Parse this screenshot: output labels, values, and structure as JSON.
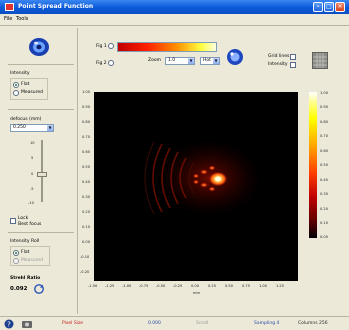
{
  "window": {
    "title": "Point Spread Function",
    "minimize": "–",
    "maximize": "□",
    "close": "✕"
  },
  "menu": {
    "file": "File",
    "tools": "Tools"
  },
  "left": {
    "intensity_label": "Intensity",
    "intensity_options": [
      "Flat",
      "Measured"
    ],
    "defocus_label": "defocus (mm)",
    "defocus_value": "0.250",
    "slider_ticks": [
      "10",
      "5",
      "0",
      "-5",
      "-10"
    ],
    "lock_label": "Lock",
    "best_focus_label": "Best focus",
    "intensity_roll_label": "Intensity Roll",
    "roll_options": [
      "Flat",
      "Measured"
    ],
    "strehl_label": "Strehl Ratio",
    "strehl_value": "0.092"
  },
  "top": {
    "fig1_label": "Fig 1",
    "fig2_label": "Fig 2",
    "zoom_label": "Zoom",
    "zoom_value": "1.0",
    "colormap_value": "Hot",
    "grid_label": "Grid lines",
    "intensity_label": "Intensity"
  },
  "colorbar_ticks": [
    "1.00",
    "0.90",
    "0.80",
    "0.70",
    "0.60",
    "0.50",
    "0.40",
    "0.30",
    "0.20",
    "0.10",
    "0.00"
  ],
  "plot": {
    "y_ticks": [
      "1.00",
      "0.90",
      "0.80",
      "0.70",
      "0.60",
      "0.50",
      "0.40",
      "0.30",
      "0.20",
      "0.10",
      "0.00",
      "-0.10",
      "-0.20"
    ],
    "x_ticks": [
      "-1.50",
      "-1.25",
      "-1.00",
      "-0.75",
      "-0.50",
      "-0.25",
      "0.00",
      "0.25",
      "0.50",
      "0.75",
      "1.00",
      "1.25"
    ],
    "x_label": "mm"
  },
  "status": {
    "fields": [
      "Pixel Size",
      "0.000",
      "Scroll",
      "Sampling 4",
      "Columns 256"
    ]
  },
  "colors": {
    "accent": "#0b5ad9",
    "plot_bg": "#000000",
    "spot": "#ffcc33"
  }
}
